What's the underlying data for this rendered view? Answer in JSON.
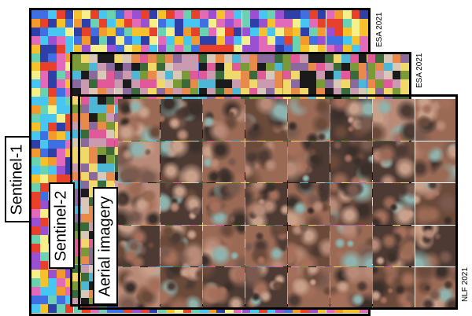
{
  "layers": {
    "sentinel1": {
      "name": "Sentinel-1",
      "credit": "ESA 2021"
    },
    "sentinel2": {
      "name": "Sentinel-2",
      "credit": "ESA 2021"
    },
    "aerial": {
      "name": "Aerial imagery",
      "credit": "NLF 2021"
    }
  },
  "colors": {
    "frame": "#000000",
    "sentinel1_palette": [
      "#e8412b",
      "#f6c12a",
      "#3f6fe0",
      "#46c6f0",
      "#9b4fd1",
      "#f5f08a",
      "#e26ab8",
      "#2f3fa8",
      "#f39a2e",
      "#6ad2b0"
    ],
    "sentinel2_palette": [
      "#1b1b1b",
      "#d9c7b8",
      "#7a9a3a",
      "#c99ab0",
      "#e05a9a",
      "#4fb7d6",
      "#f0d86a",
      "#8a6a9c",
      "#3a6a3a",
      "#e88a4a"
    ],
    "aerial_palette": [
      "#6b4a3a",
      "#9a6a55",
      "#4c3a33",
      "#b88a77",
      "#7a5a4e",
      "#c9a08a",
      "#3b2f2a",
      "#a56f5a",
      "#8fb3ae"
    ]
  }
}
